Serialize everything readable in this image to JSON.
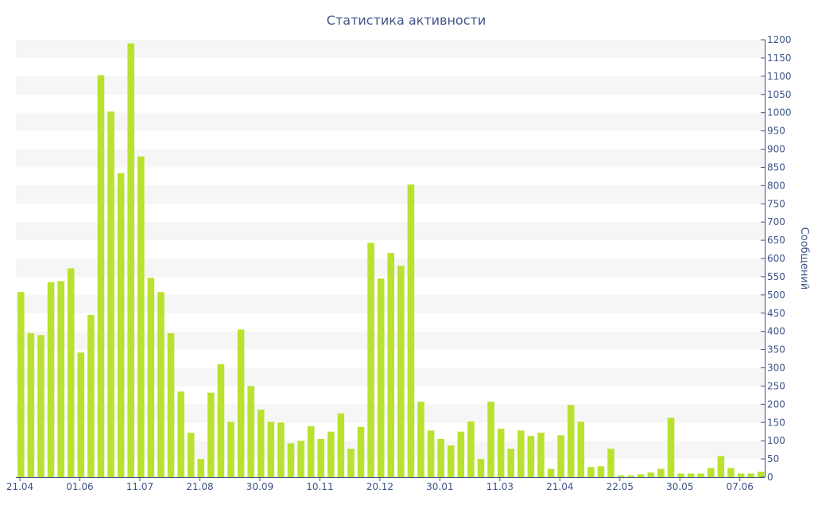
{
  "chart_data": {
    "type": "bar",
    "title": "Статистика активности",
    "xlabel": "",
    "ylabel": "Сообщений",
    "ylim": [
      0,
      1200
    ],
    "y_ticks": [
      0,
      50,
      100,
      150,
      200,
      250,
      300,
      350,
      400,
      450,
      500,
      550,
      600,
      650,
      700,
      750,
      800,
      850,
      900,
      950,
      1000,
      1050,
      1100,
      1150,
      1200
    ],
    "x_tick_labels": [
      {
        "label": "21.04",
        "index": 0
      },
      {
        "label": "01.06",
        "index": 6
      },
      {
        "label": "11.07",
        "index": 12
      },
      {
        "label": "21.08",
        "index": 18
      },
      {
        "label": "30.09",
        "index": 24
      },
      {
        "label": "10.11",
        "index": 30
      },
      {
        "label": "20.12",
        "index": 36
      },
      {
        "label": "30.01",
        "index": 42
      },
      {
        "label": "11.03",
        "index": 48
      },
      {
        "label": "21.04",
        "index": 54
      },
      {
        "label": "22.05",
        "index": 60
      },
      {
        "label": "30.05",
        "index": 66
      },
      {
        "label": "07.06",
        "index": 72
      }
    ],
    "grid": "horizontal bands",
    "legend": "none",
    "y_axis_side": "right",
    "bar_color": "#b9e22f",
    "values": [
      508,
      395,
      390,
      535,
      538,
      573,
      342,
      445,
      1103,
      1003,
      834,
      1190,
      880,
      547,
      508,
      395,
      235,
      122,
      50,
      232,
      310,
      152,
      405,
      250,
      185,
      152,
      150,
      93,
      100,
      140,
      105,
      125,
      175,
      78,
      138,
      643,
      545,
      615,
      580,
      803,
      207,
      128,
      105,
      87,
      125,
      153,
      50,
      207,
      133,
      78,
      128,
      113,
      122,
      23,
      115,
      198,
      152,
      28,
      30,
      78,
      5,
      5,
      8,
      13,
      23,
      163,
      10,
      10,
      10,
      25,
      58,
      25,
      10,
      10,
      15
    ]
  },
  "colors": {
    "text": "#3f5487",
    "band": "#f6f6f6",
    "axis": "#3f5487"
  }
}
